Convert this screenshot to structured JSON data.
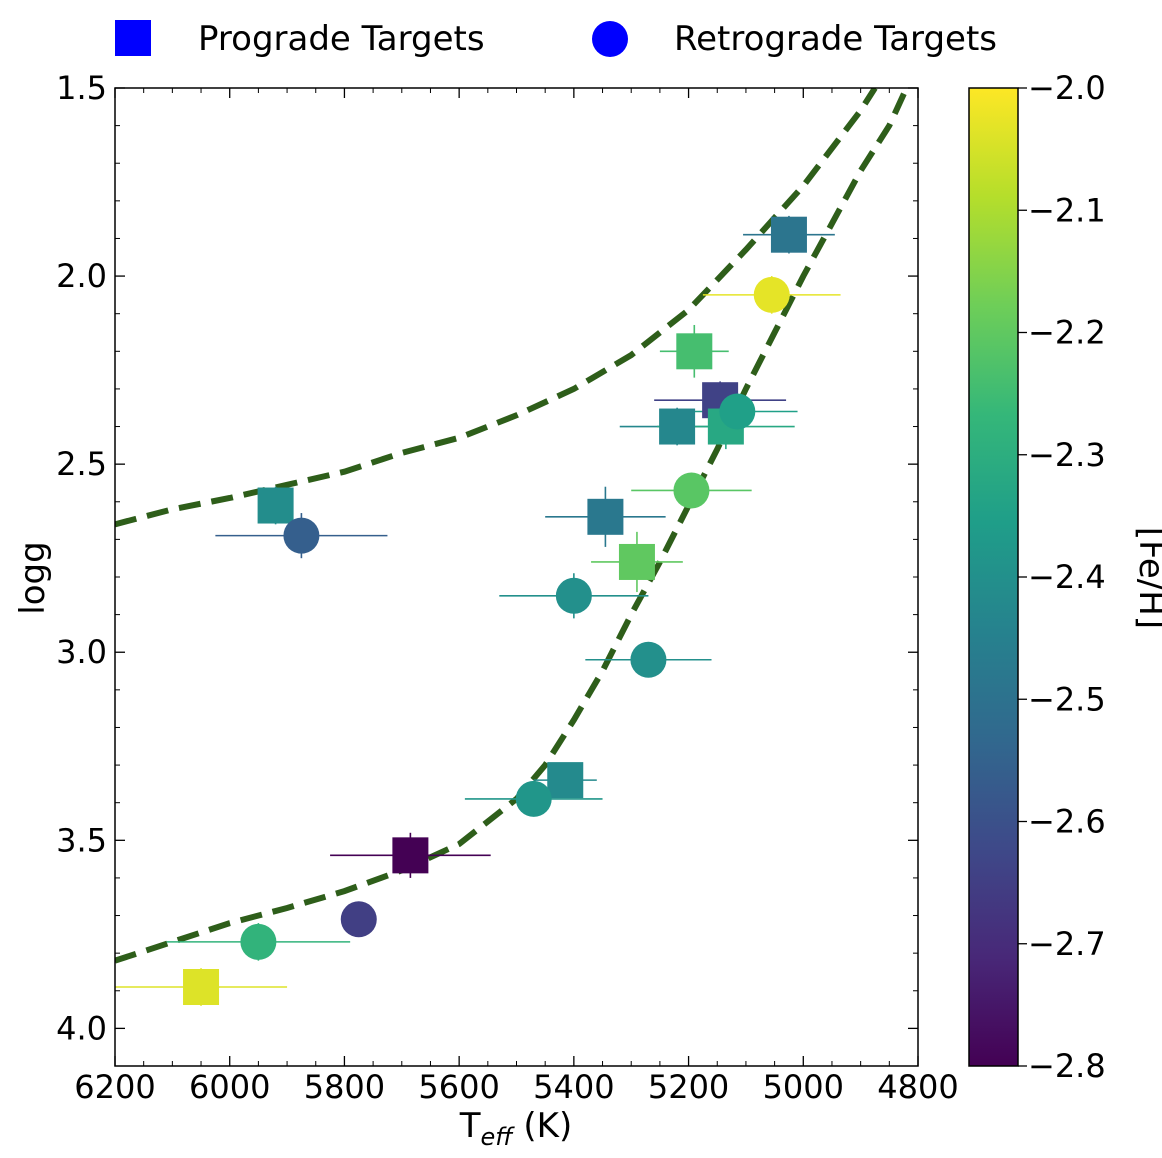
{
  "chart_data": {
    "type": "scatter",
    "xlabel": "T",
    "xlabel_sub": "eff",
    "xlabel_unit": " (K)",
    "ylabel": "logg",
    "xlim": [
      6200,
      4800
    ],
    "ylim": [
      4.1,
      1.5
    ],
    "x_inverted": true,
    "y_inverted": true,
    "xticks": [
      6200,
      6000,
      5800,
      5600,
      5400,
      5200,
      5000,
      4800
    ],
    "yticks": [
      1.5,
      2.0,
      2.5,
      3.0,
      3.5,
      4.0
    ],
    "ytick_labels": [
      "1.5",
      "2.0",
      "2.5",
      "3.0",
      "3.5",
      "4.0"
    ],
    "grid": false,
    "legend_placement": "top-center, above plot",
    "legend": [
      {
        "label": "Prograde Targets",
        "marker": "square",
        "color": "#0000ff"
      },
      {
        "label": "Retrograde Targets",
        "marker": "circle",
        "color": "#0000ff"
      }
    ],
    "colorbar": {
      "label": "[Fe/H]",
      "min": -2.8,
      "max": -2.0,
      "ticks": [
        -2.0,
        -2.1,
        -2.2,
        -2.3,
        -2.4,
        -2.5,
        -2.6,
        -2.7,
        -2.8
      ],
      "tick_labels": [
        "−2.0",
        "−2.1",
        "−2.2",
        "−2.3",
        "−2.4",
        "−2.5",
        "−2.6",
        "−2.7",
        "−2.8"
      ],
      "colormap": "viridis",
      "colormap_stops": [
        "#440154",
        "#482878",
        "#3e4989",
        "#31688e",
        "#26828e",
        "#1f9e89",
        "#35b779",
        "#6ece58",
        "#b5de2b",
        "#fde725"
      ]
    },
    "series": [
      {
        "name": "Prograde Targets",
        "marker": "square",
        "points": [
          {
            "teff": 5025,
            "logg": 1.89,
            "xerr": 80,
            "yerr": 0.05,
            "feh": -2.49
          },
          {
            "teff": 5190,
            "logg": 2.2,
            "xerr": 60,
            "yerr": 0.07,
            "feh": -2.24
          },
          {
            "teff": 5145,
            "logg": 2.33,
            "xerr": 115,
            "yerr": 0.05,
            "feh": -2.64
          },
          {
            "teff": 5220,
            "logg": 2.4,
            "xerr": 100,
            "yerr": 0.05,
            "feh": -2.43
          },
          {
            "teff": 5135,
            "logg": 2.4,
            "xerr": 120,
            "yerr": 0.06,
            "feh": -2.32
          },
          {
            "teff": 5920,
            "logg": 2.61,
            "xerr": 20,
            "yerr": 0.05,
            "feh": -2.41
          },
          {
            "teff": 5345,
            "logg": 2.64,
            "xerr": 105,
            "yerr": 0.08,
            "feh": -2.48
          },
          {
            "teff": 5290,
            "logg": 2.76,
            "xerr": 80,
            "yerr": 0.08,
            "feh": -2.2
          },
          {
            "teff": 5415,
            "logg": 3.34,
            "xerr": 55,
            "yerr": 0.04,
            "feh": -2.42
          },
          {
            "teff": 5685,
            "logg": 3.54,
            "xerr": 140,
            "yerr": 0.06,
            "feh": -2.8
          },
          {
            "teff": 6050,
            "logg": 3.89,
            "xerr": 150,
            "yerr": 0.05,
            "feh": -2.04
          }
        ]
      },
      {
        "name": "Retrograde Targets",
        "marker": "circle",
        "points": [
          {
            "teff": 5055,
            "logg": 2.05,
            "xerr": 120,
            "yerr": 0.05,
            "feh": -2.03
          },
          {
            "teff": 5115,
            "logg": 2.36,
            "xerr": 105,
            "yerr": 0.04,
            "feh": -2.35
          },
          {
            "teff": 5195,
            "logg": 2.57,
            "xerr": 105,
            "yerr": 0.04,
            "feh": -2.21
          },
          {
            "teff": 5875,
            "logg": 2.69,
            "xerr": 150,
            "yerr": 0.06,
            "feh": -2.56
          },
          {
            "teff": 5400,
            "logg": 2.85,
            "xerr": 130,
            "yerr": 0.06,
            "feh": -2.4
          },
          {
            "teff": 5270,
            "logg": 3.02,
            "xerr": 110,
            "yerr": 0.04,
            "feh": -2.4
          },
          {
            "teff": 5470,
            "logg": 3.39,
            "xerr": 120,
            "yerr": 0.04,
            "feh": -2.38
          },
          {
            "teff": 5775,
            "logg": 3.71,
            "xerr": 25,
            "yerr": 0.03,
            "feh": -2.65
          },
          {
            "teff": 5950,
            "logg": 3.77,
            "xerr": 160,
            "yerr": 0.05,
            "feh": -2.28
          }
        ]
      }
    ],
    "curves": [
      {
        "style": "dashed",
        "color": "#2e5e1a",
        "points": [
          [
            6200,
            2.66
          ],
          [
            6100,
            2.62
          ],
          [
            6000,
            2.59
          ],
          [
            5900,
            2.555
          ],
          [
            5800,
            2.52
          ],
          [
            5700,
            2.47
          ],
          [
            5600,
            2.43
          ],
          [
            5500,
            2.37
          ],
          [
            5400,
            2.3
          ],
          [
            5300,
            2.21
          ],
          [
            5200,
            2.09
          ],
          [
            5100,
            1.93
          ],
          [
            5000,
            1.76
          ],
          [
            4900,
            1.56
          ],
          [
            4875,
            1.5
          ]
        ]
      },
      {
        "style": "dashed",
        "color": "#2e5e1a",
        "points": [
          [
            6200,
            3.82
          ],
          [
            6100,
            3.77
          ],
          [
            6000,
            3.72
          ],
          [
            5900,
            3.68
          ],
          [
            5800,
            3.635
          ],
          [
            5700,
            3.58
          ],
          [
            5600,
            3.51
          ],
          [
            5500,
            3.39
          ],
          [
            5450,
            3.3
          ],
          [
            5400,
            3.18
          ],
          [
            5350,
            3.05
          ],
          [
            5300,
            2.9
          ],
          [
            5250,
            2.76
          ],
          [
            5200,
            2.61
          ],
          [
            5150,
            2.46
          ],
          [
            5100,
            2.3
          ],
          [
            5050,
            2.15
          ],
          [
            5000,
            2.0
          ],
          [
            4950,
            1.86
          ],
          [
            4900,
            1.72
          ],
          [
            4850,
            1.6
          ],
          [
            4820,
            1.5
          ]
        ]
      }
    ]
  }
}
